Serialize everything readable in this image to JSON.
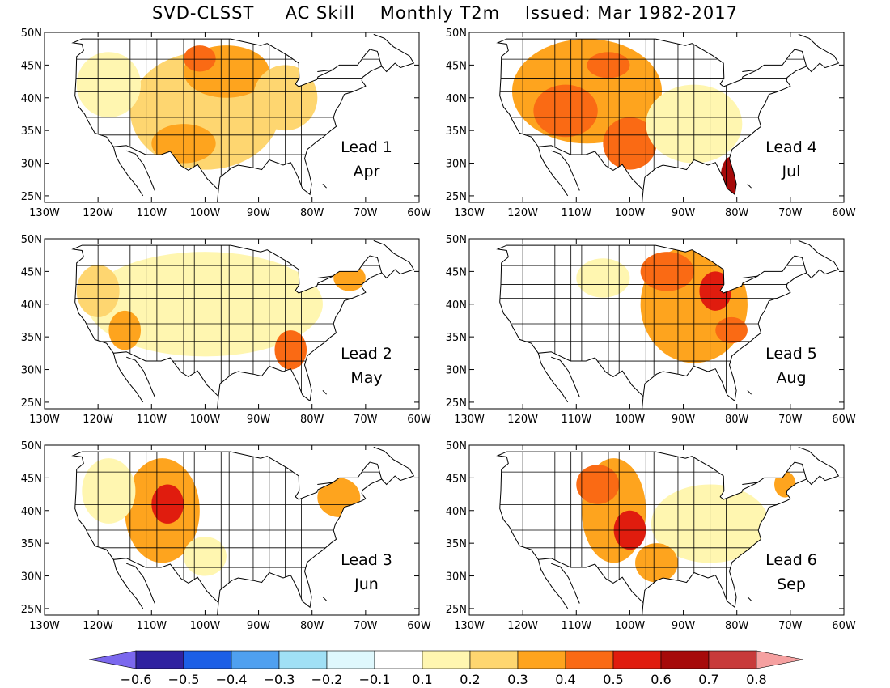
{
  "title": "SVD-CLSST     AC Skill    Monthly T2m    Issued: Mar 1982-2017",
  "lat_ticks": [
    "50N",
    "45N",
    "40N",
    "35N",
    "30N",
    "25N"
  ],
  "lon_ticks": [
    "130W",
    "120W",
    "110W",
    "100W",
    "90W",
    "80W",
    "70W",
    "60W"
  ],
  "map_extent": {
    "lon": [
      -130,
      -60
    ],
    "lat": [
      24,
      50
    ]
  },
  "panels": [
    {
      "lead": "Lead 1",
      "month": "Apr",
      "blobs": [
        {
          "lon": -100,
          "lat": 38,
          "rlon": 14,
          "rlat": 9,
          "level": 0.2
        },
        {
          "lon": -96,
          "lat": 44,
          "rlon": 8,
          "rlat": 4,
          "level": 0.35
        },
        {
          "lon": -104,
          "lat": 33,
          "rlon": 6,
          "rlat": 3,
          "level": 0.38
        },
        {
          "lon": -101,
          "lat": 46,
          "rlon": 3,
          "rlat": 2,
          "level": 0.45
        },
        {
          "lon": -118,
          "lat": 42,
          "rlon": 6,
          "rlat": 5,
          "level": 0.15
        },
        {
          "lon": -85,
          "lat": 40,
          "rlon": 6,
          "rlat": 5,
          "level": 0.2
        }
      ]
    },
    {
      "lead": "Lead 4",
      "month": "Jul",
      "blobs": [
        {
          "lon": -108,
          "lat": 41,
          "rlon": 14,
          "rlat": 8,
          "level": 0.3
        },
        {
          "lon": -112,
          "lat": 38,
          "rlon": 6,
          "rlat": 4,
          "level": 0.45
        },
        {
          "lon": -100,
          "lat": 33,
          "rlon": 5,
          "rlat": 4,
          "level": 0.4
        },
        {
          "lon": -81,
          "lat": 28,
          "rlon": 2,
          "rlat": 3,
          "level": 0.6
        },
        {
          "lon": -88,
          "lat": 36,
          "rlon": 9,
          "rlat": 6,
          "level": 0.18
        },
        {
          "lon": -104,
          "lat": 45,
          "rlon": 4,
          "rlat": 2,
          "level": 0.45
        }
      ]
    },
    {
      "lead": "Lead 2",
      "month": "May",
      "blobs": [
        {
          "lon": -100,
          "lat": 40,
          "rlon": 22,
          "rlat": 8,
          "level": 0.15
        },
        {
          "lon": -84,
          "lat": 33,
          "rlon": 3,
          "rlat": 3,
          "level": 0.42
        },
        {
          "lon": -115,
          "lat": 36,
          "rlon": 3,
          "rlat": 3,
          "level": 0.35
        },
        {
          "lon": -120,
          "lat": 42,
          "rlon": 4,
          "rlat": 4,
          "level": 0.2
        },
        {
          "lon": -73,
          "lat": 44,
          "rlon": 3,
          "rlat": 2,
          "level": 0.3
        }
      ]
    },
    {
      "lead": "Lead 5",
      "month": "Aug",
      "blobs": [
        {
          "lon": -88,
          "lat": 40,
          "rlon": 10,
          "rlat": 9,
          "level": 0.33
        },
        {
          "lon": -84,
          "lat": 42,
          "rlon": 3,
          "rlat": 3,
          "level": 0.5
        },
        {
          "lon": -93,
          "lat": 45,
          "rlon": 5,
          "rlat": 3,
          "level": 0.4
        },
        {
          "lon": -81,
          "lat": 36,
          "rlon": 3,
          "rlat": 2,
          "level": 0.45
        },
        {
          "lon": -105,
          "lat": 44,
          "rlon": 5,
          "rlat": 3,
          "level": 0.15
        }
      ]
    },
    {
      "lead": "Lead 3",
      "month": "Jun",
      "blobs": [
        {
          "lon": -108,
          "lat": 40,
          "rlon": 7,
          "rlat": 8,
          "level": 0.35
        },
        {
          "lon": -107,
          "lat": 41,
          "rlon": 3,
          "rlat": 3,
          "level": 0.55
        },
        {
          "lon": -75,
          "lat": 42,
          "rlon": 4,
          "rlat": 3,
          "level": 0.38
        },
        {
          "lon": -118,
          "lat": 43,
          "rlon": 5,
          "rlat": 5,
          "level": 0.15
        },
        {
          "lon": -100,
          "lat": 33,
          "rlon": 4,
          "rlat": 3,
          "level": 0.15
        }
      ]
    },
    {
      "lead": "Lead 6",
      "month": "Sep",
      "blobs": [
        {
          "lon": -103,
          "lat": 40,
          "rlon": 6,
          "rlat": 8,
          "level": 0.38
        },
        {
          "lon": -106,
          "lat": 44,
          "rlon": 4,
          "rlat": 3,
          "level": 0.45
        },
        {
          "lon": -100,
          "lat": 37,
          "rlon": 3,
          "rlat": 3,
          "level": 0.5
        },
        {
          "lon": -85,
          "lat": 38,
          "rlon": 11,
          "rlat": 6,
          "level": 0.18
        },
        {
          "lon": -95,
          "lat": 32,
          "rlon": 4,
          "rlat": 3,
          "level": 0.3
        },
        {
          "lon": -71,
          "lat": 44,
          "rlon": 2,
          "rlat": 2,
          "level": 0.3
        }
      ]
    }
  ],
  "colorbar": {
    "labels": [
      "-0.6",
      "-0.5",
      "-0.4",
      "-0.3",
      "-0.2",
      "-0.1",
      "0.1",
      "0.2",
      "0.3",
      "0.4",
      "0.5",
      "0.6",
      "0.7",
      "0.8"
    ],
    "bins": [
      {
        "lo": -0.7,
        "hi": -0.6,
        "color": "#7b68ee"
      },
      {
        "lo": -0.6,
        "hi": -0.5,
        "color": "#2f22a0"
      },
      {
        "lo": -0.5,
        "hi": -0.4,
        "color": "#1c5fe6"
      },
      {
        "lo": -0.4,
        "hi": -0.3,
        "color": "#4fa0f0"
      },
      {
        "lo": -0.3,
        "hi": -0.2,
        "color": "#a0e0f5"
      },
      {
        "lo": -0.2,
        "hi": -0.1,
        "color": "#dff8fd"
      },
      {
        "lo": -0.1,
        "hi": 0.1,
        "color": "#ffffff"
      },
      {
        "lo": 0.1,
        "hi": 0.2,
        "color": "#fff6b0"
      },
      {
        "lo": 0.2,
        "hi": 0.3,
        "color": "#fed670"
      },
      {
        "lo": 0.3,
        "hi": 0.4,
        "color": "#fea41e"
      },
      {
        "lo": 0.4,
        "hi": 0.5,
        "color": "#fa6a14"
      },
      {
        "lo": 0.5,
        "hi": 0.6,
        "color": "#e01c0e"
      },
      {
        "lo": 0.6,
        "hi": 0.7,
        "color": "#a60a0a"
      },
      {
        "lo": 0.7,
        "hi": 0.8,
        "color": "#c83a3a"
      },
      {
        "lo": 0.8,
        "hi": 0.9,
        "color": "#f5a0a0"
      }
    ]
  }
}
